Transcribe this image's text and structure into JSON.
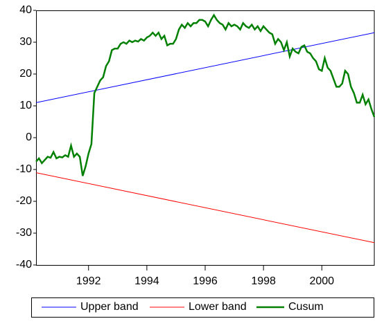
{
  "chart_data": {
    "type": "line",
    "xlim": [
      1990.2,
      2001.8
    ],
    "xticks": [
      1992,
      1994,
      1996,
      1998,
      2000
    ],
    "ylim": [
      -40,
      40
    ],
    "yticks": [
      -40,
      -30,
      -20,
      -10,
      0,
      10,
      20,
      30,
      40
    ],
    "legend": "bottom",
    "series": [
      {
        "name": "Upper band",
        "color": "#0000ff",
        "x": [
          1990.2,
          2001.8
        ],
        "values": [
          11,
          33
        ]
      },
      {
        "name": "Lower band",
        "color": "#ff0000",
        "x": [
          1990.2,
          2001.8
        ],
        "values": [
          -11,
          -33
        ]
      },
      {
        "name": "Cusum",
        "color": "#008000",
        "x": [
          1990.2,
          1990.3,
          1990.4,
          1990.5,
          1990.6,
          1990.7,
          1990.8,
          1990.9,
          1991.0,
          1991.1,
          1991.2,
          1991.3,
          1991.4,
          1991.5,
          1991.6,
          1991.7,
          1991.8,
          1991.9,
          1992.0,
          1992.1,
          1992.2,
          1992.3,
          1992.4,
          1992.5,
          1992.6,
          1992.7,
          1992.8,
          1992.9,
          1993.0,
          1993.1,
          1993.2,
          1993.3,
          1993.4,
          1993.5,
          1993.6,
          1993.7,
          1993.8,
          1993.9,
          1994.0,
          1994.1,
          1994.2,
          1994.3,
          1994.4,
          1994.5,
          1994.6,
          1994.7,
          1994.8,
          1994.9,
          1995.0,
          1995.1,
          1995.2,
          1995.3,
          1995.4,
          1995.5,
          1995.6,
          1995.7,
          1995.8,
          1995.9,
          1996.0,
          1996.1,
          1996.2,
          1996.3,
          1996.4,
          1996.5,
          1996.6,
          1996.7,
          1996.8,
          1996.9,
          1997.0,
          1997.1,
          1997.2,
          1997.3,
          1997.4,
          1997.5,
          1997.6,
          1997.7,
          1997.8,
          1997.9,
          1998.0,
          1998.1,
          1998.2,
          1998.3,
          1998.4,
          1998.5,
          1998.6,
          1998.7,
          1998.8,
          1998.9,
          1999.0,
          1999.1,
          1999.2,
          1999.3,
          1999.4,
          1999.5,
          1999.6,
          1999.7,
          1999.8,
          1999.9,
          2000.0,
          2000.1,
          2000.2,
          2000.3,
          2000.4,
          2000.5,
          2000.6,
          2000.7,
          2000.8,
          2000.9,
          2001.0,
          2001.1,
          2001.2,
          2001.3,
          2001.4,
          2001.5,
          2001.6,
          2001.7,
          2001.8
        ],
        "values": [
          -7.5,
          -6.5,
          -8,
          -7,
          -6,
          -6.3,
          -4.5,
          -6.5,
          -6,
          -6.2,
          -5.5,
          -6,
          -2.5,
          -6,
          -5,
          -6,
          -12,
          -9,
          -5,
          -2,
          14,
          16,
          18,
          19,
          22.5,
          24,
          27.5,
          28,
          28,
          29.5,
          30,
          29.5,
          30.5,
          30,
          30.5,
          30.2,
          31,
          30.5,
          31.5,
          32,
          33,
          32,
          33,
          31,
          32,
          29,
          29.5,
          29.5,
          31,
          34,
          35.5,
          34.5,
          36,
          35,
          36,
          36,
          37,
          37,
          36.5,
          35,
          37,
          38.5,
          37,
          36,
          35.5,
          34,
          36,
          35,
          35.5,
          35,
          34,
          36,
          35,
          34.5,
          35.5,
          34,
          35,
          33.5,
          35,
          34,
          33,
          32.5,
          29.5,
          31,
          30,
          27.5,
          30,
          25.5,
          28,
          27,
          26.5,
          28.5,
          29,
          27,
          26.5,
          25,
          24,
          21.5,
          21,
          25,
          22,
          21,
          18.5,
          16,
          16,
          17,
          21,
          20,
          16,
          14,
          11,
          11,
          13.5,
          10.5,
          12,
          9,
          6.5
        ]
      }
    ]
  }
}
